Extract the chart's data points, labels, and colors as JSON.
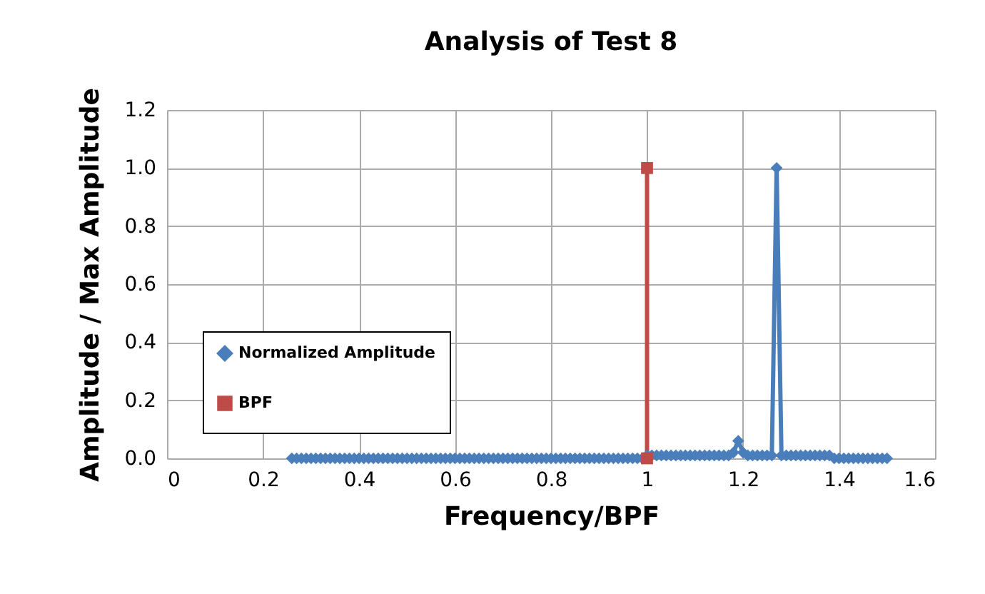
{
  "chart_data": {
    "type": "line",
    "title": "Analysis of Test 8",
    "xlabel": "Frequency/BPF",
    "ylabel": "Amplitude / Max Amplitude",
    "xlim": [
      0,
      1.6
    ],
    "xticks": [
      0,
      0.2,
      0.4,
      0.6,
      0.8,
      1,
      1.2,
      1.4,
      1.6
    ],
    "ylim": [
      0,
      1.2
    ],
    "yticks": [
      {
        "value": 0,
        "label": "0.0"
      },
      {
        "value": 0.2,
        "label": "0.2"
      },
      {
        "value": 0.4,
        "label": "0.4"
      },
      {
        "value": 0.6,
        "label": "0.6"
      },
      {
        "value": 0.8,
        "label": "0.8"
      },
      {
        "value": 1,
        "label": "1.0"
      },
      {
        "value": 1.2,
        "label": "1.2"
      }
    ],
    "grid": true,
    "legend": "bottom left",
    "line_style": "solid",
    "series": [
      {
        "name": "Normalized Amplitude",
        "color": "#4a7ebb",
        "marker": "diamond",
        "x": [
          0.26,
          0.27,
          0.28,
          0.29,
          0.3,
          0.31,
          0.32,
          0.33,
          0.34,
          0.35,
          0.36,
          0.37,
          0.38,
          0.39,
          0.4,
          0.41,
          0.42,
          0.43,
          0.44,
          0.45,
          0.46,
          0.47,
          0.48,
          0.49,
          0.5,
          0.51,
          0.52,
          0.53,
          0.54,
          0.55,
          0.56,
          0.57,
          0.58,
          0.59,
          0.6,
          0.61,
          0.62,
          0.63,
          0.64,
          0.65,
          0.66,
          0.67,
          0.68,
          0.69,
          0.7,
          0.71,
          0.72,
          0.73,
          0.74,
          0.75,
          0.76,
          0.77,
          0.78,
          0.79,
          0.8,
          0.81,
          0.82,
          0.83,
          0.84,
          0.85,
          0.86,
          0.87,
          0.88,
          0.89,
          0.9,
          0.91,
          0.92,
          0.93,
          0.94,
          0.95,
          0.96,
          0.97,
          0.98,
          0.99,
          1.0,
          1.01,
          1.02,
          1.03,
          1.04,
          1.05,
          1.06,
          1.07,
          1.08,
          1.09,
          1.1,
          1.11,
          1.12,
          1.13,
          1.14,
          1.15,
          1.16,
          1.17,
          1.18,
          1.19,
          1.2,
          1.21,
          1.22,
          1.23,
          1.24,
          1.25,
          1.26,
          1.27,
          1.28,
          1.29,
          1.3,
          1.31,
          1.32,
          1.33,
          1.34,
          1.35,
          1.36,
          1.37,
          1.38,
          1.39,
          1.4,
          1.41,
          1.42,
          1.43,
          1.44,
          1.45,
          1.46,
          1.47,
          1.48,
          1.49,
          1.5
        ],
        "values": [
          0,
          0,
          0,
          0,
          0,
          0,
          0,
          0,
          0,
          0,
          0,
          0,
          0,
          0,
          0,
          0,
          0,
          0,
          0,
          0,
          0,
          0,
          0,
          0,
          0,
          0,
          0,
          0,
          0,
          0,
          0,
          0,
          0,
          0,
          0,
          0,
          0,
          0,
          0,
          0,
          0,
          0,
          0,
          0,
          0,
          0,
          0,
          0,
          0,
          0,
          0,
          0,
          0,
          0,
          0,
          0,
          0,
          0,
          0,
          0,
          0,
          0,
          0,
          0,
          0,
          0,
          0,
          0,
          0,
          0,
          0,
          0,
          0,
          0,
          0.01,
          0.01,
          0.01,
          0.01,
          0.01,
          0.01,
          0.01,
          0.01,
          0.01,
          0.01,
          0.01,
          0.01,
          0.01,
          0.01,
          0.01,
          0.01,
          0.01,
          0.01,
          0.02,
          0.06,
          0.02,
          0.01,
          0.01,
          0.01,
          0.01,
          0.01,
          0.01,
          1.0,
          0.01,
          0.01,
          0.01,
          0.01,
          0.01,
          0.01,
          0.01,
          0.01,
          0.01,
          0.01,
          0.01,
          0,
          0,
          0,
          0,
          0,
          0,
          0,
          0,
          0,
          0,
          0,
          0
        ]
      },
      {
        "name": "BPF",
        "color": "#be4b48",
        "marker": "square",
        "x": [
          1,
          1
        ],
        "values": [
          0,
          1
        ]
      }
    ]
  }
}
